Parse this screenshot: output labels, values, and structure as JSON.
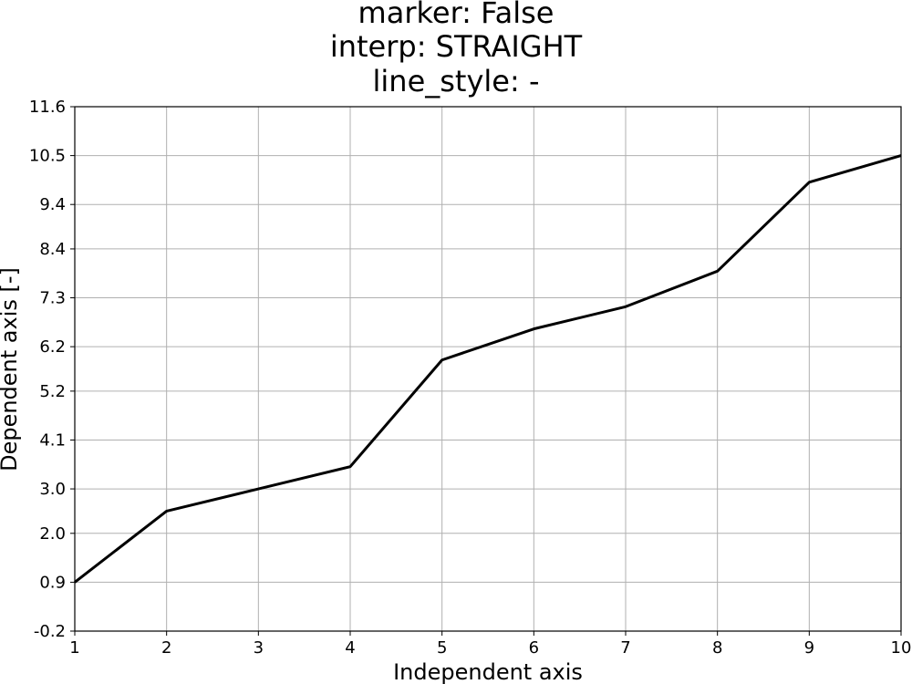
{
  "chart_data": {
    "type": "line",
    "title": [
      "marker: False",
      "interp: STRAIGHT",
      "line_style: -"
    ],
    "xlabel": "Independent axis",
    "ylabel": "Dependent axis [-]",
    "xlim": [
      1,
      10
    ],
    "ylim": [
      -0.2,
      11.6
    ],
    "x_ticks": [
      1,
      2,
      3,
      4,
      5,
      6,
      7,
      8,
      9,
      10
    ],
    "x_tick_labels": [
      "1",
      "2",
      "3",
      "4",
      "5",
      "6",
      "7",
      "8",
      "9",
      "10"
    ],
    "y_ticks": [
      -0.2,
      0.9,
      2.0,
      3.0,
      4.1,
      5.2,
      6.2,
      7.3,
      8.4,
      9.4,
      10.5,
      11.6
    ],
    "y_tick_labels": [
      "-0.2",
      "0.9",
      "2.0",
      "3.0",
      "4.1",
      "5.2",
      "6.2",
      "7.3",
      "8.4",
      "9.4",
      "10.5",
      "11.6"
    ],
    "grid": true,
    "legend": false,
    "series": [
      {
        "color": "#000000",
        "marker": false,
        "line_style": "solid",
        "x": [
          1,
          2,
          3,
          4,
          5,
          6,
          7,
          8,
          9,
          10
        ],
        "y": [
          0.9,
          2.5,
          3.0,
          3.5,
          5.9,
          6.6,
          7.1,
          7.9,
          9.9,
          10.5
        ]
      }
    ]
  }
}
